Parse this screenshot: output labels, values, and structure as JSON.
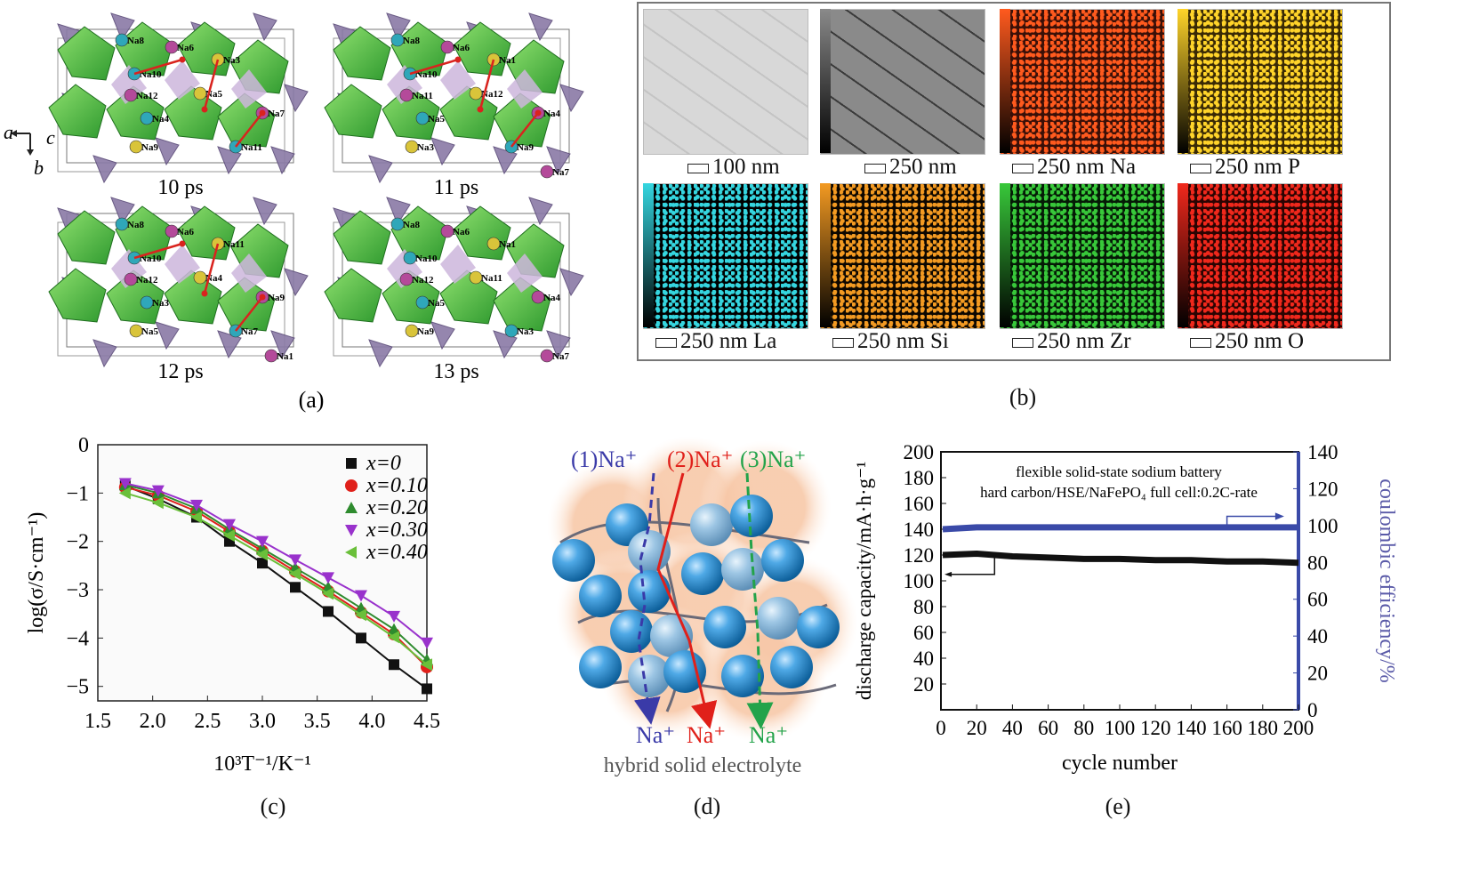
{
  "panels": {
    "a": {
      "label": "(a)",
      "axes": {
        "a": "a",
        "b": "b",
        "c": "c"
      },
      "frames": [
        {
          "time": "10 ps",
          "sites": [
            "Na8",
            "Na6",
            "Na3",
            "Na10",
            "Na12",
            "Na5",
            "Na4",
            "Na7",
            "Na9",
            "Na11"
          ]
        },
        {
          "time": "11 ps",
          "sites": [
            "Na8",
            "Na6",
            "Na1",
            "Na10",
            "Na11",
            "Na12",
            "Na5",
            "Na4",
            "Na3",
            "Na9",
            "Na7"
          ]
        },
        {
          "time": "12 ps",
          "sites": [
            "Na8",
            "Na6",
            "Na11",
            "Na10",
            "Na12",
            "Na4",
            "Na3",
            "Na9",
            "Na5",
            "Na7",
            "Na1"
          ]
        },
        {
          "time": "13 ps",
          "sites": [
            "Na8",
            "Na6",
            "Na1",
            "Na10",
            "Na12",
            "Na11",
            "Na5",
            "Na4",
            "Na9",
            "Na3",
            "Na7"
          ]
        }
      ]
    },
    "b": {
      "label": "(b)",
      "maps": [
        {
          "scale": "100 nm",
          "colors": [
            "#d8d8d8",
            "#c4c4c4"
          ]
        },
        {
          "scale": "250 nm",
          "colors": [
            "#8a8a8a",
            "#3b3b3b"
          ]
        },
        {
          "scale": "250 nm Na",
          "colors": [
            "#ff5a1e",
            "#3a1008"
          ]
        },
        {
          "scale": "250 nm P",
          "colors": [
            "#ffd42a",
            "#3a2a05"
          ]
        },
        {
          "scale": "250 nm La",
          "colors": [
            "#35d6e0",
            "#000000"
          ]
        },
        {
          "scale": "250 nm Si",
          "colors": [
            "#f39a22",
            "#0d0700"
          ]
        },
        {
          "scale": "250 nm Zr",
          "colors": [
            "#38c83a",
            "#051a06"
          ]
        },
        {
          "scale": "250 nm O",
          "colors": [
            "#f0281c",
            "#2a0402"
          ]
        }
      ]
    },
    "c": {
      "label": "(c)"
    },
    "d": {
      "label": "(d)",
      "routes": [
        {
          "text": "(1)Na⁺",
          "color": "#3a3aa8"
        },
        {
          "text": "(2)Na⁺",
          "color": "#e0201a"
        },
        {
          "text": "(3)Na⁺",
          "color": "#23a34a"
        }
      ],
      "outlets": [
        {
          "text": "Na⁺",
          "color": "#3a3aa8"
        },
        {
          "text": "Na⁺",
          "color": "#e0201a"
        },
        {
          "text": "Na⁺",
          "color": "#23a34a"
        }
      ],
      "caption": "hybrid solid electrolyte"
    },
    "e": {
      "label": "(e)"
    }
  },
  "chart_data": [
    {
      "type": "line",
      "panel": "c",
      "xlabel": "10³T⁻¹/K⁻¹",
      "ylabel": "log(σ/S·cm⁻¹)",
      "xlim": [
        1.5,
        4.5
      ],
      "ylim": [
        -5.3,
        0
      ],
      "xticks": [
        "1.5",
        "2.0",
        "2.5",
        "3.0",
        "3.5",
        "4.0",
        "4.5"
      ],
      "yticks": [
        "0",
        "−1",
        "−2",
        "−3",
        "−4",
        "−5"
      ],
      "legend_position": "top-right",
      "grid": false,
      "series": [
        {
          "name": "x=0",
          "color": "#111111",
          "marker": "square",
          "x": [
            1.75,
            2.05,
            2.4,
            2.7,
            3.0,
            3.3,
            3.6,
            3.9,
            4.2,
            4.5
          ],
          "y": [
            -0.85,
            -1.12,
            -1.5,
            -2.0,
            -2.45,
            -2.95,
            -3.45,
            -4.0,
            -4.55,
            -5.05
          ]
        },
        {
          "name": "x=0.10",
          "color": "#e0201a",
          "marker": "circle",
          "x": [
            1.75,
            2.05,
            2.4,
            2.7,
            3.0,
            3.3,
            3.6,
            3.9,
            4.2,
            4.5
          ],
          "y": [
            -0.88,
            -1.05,
            -1.38,
            -1.8,
            -2.2,
            -2.62,
            -3.03,
            -3.47,
            -3.92,
            -4.6
          ]
        },
        {
          "name": "x=0.20",
          "color": "#2e8b2e",
          "marker": "triangle-up",
          "x": [
            1.75,
            2.05,
            2.4,
            2.7,
            3.0,
            3.3,
            3.6,
            3.9,
            4.2,
            4.5
          ],
          "y": [
            -0.83,
            -1.0,
            -1.32,
            -1.75,
            -2.15,
            -2.55,
            -2.95,
            -3.38,
            -3.82,
            -4.45
          ]
        },
        {
          "name": "x=0.30",
          "color": "#9932cc",
          "marker": "triangle-down",
          "x": [
            1.75,
            2.05,
            2.4,
            2.7,
            3.0,
            3.3,
            3.6,
            3.9,
            4.2,
            4.5
          ],
          "y": [
            -0.8,
            -0.95,
            -1.25,
            -1.65,
            -2.0,
            -2.38,
            -2.75,
            -3.12,
            -3.55,
            -4.1
          ]
        },
        {
          "name": "x=0.40",
          "color": "#6abf3a",
          "marker": "triangle-left",
          "x": [
            1.75,
            2.05,
            2.4,
            2.7,
            3.0,
            3.3,
            3.6,
            3.9,
            4.2,
            4.5
          ],
          "y": [
            -1.0,
            -1.2,
            -1.5,
            -1.88,
            -2.27,
            -2.67,
            -3.08,
            -3.52,
            -3.98,
            -4.55
          ]
        }
      ]
    },
    {
      "type": "line",
      "panel": "e",
      "annotation_lines": [
        "flexible solid-state sodium battery",
        "hard carbon/HSE/NaFePO₄ full cell:0.2C-rate"
      ],
      "xlabel": "cycle number",
      "ylabel": "discharge capacity/mA·h·g⁻¹",
      "ylabel_right": "coulombic efficiency/%",
      "xlim": [
        0,
        200
      ],
      "ylim": [
        0,
        200
      ],
      "ylim_right": [
        0,
        140
      ],
      "xticks": [
        "0",
        "20",
        "40",
        "60",
        "80",
        "100",
        "120",
        "140",
        "160",
        "180",
        "200"
      ],
      "yticks": [
        "20",
        "40",
        "60",
        "80",
        "100",
        "120",
        "140",
        "160",
        "180",
        "200"
      ],
      "yticks_right": [
        "0",
        "20",
        "40",
        "60",
        "80",
        "100",
        "120",
        "140"
      ],
      "grid": false,
      "series": [
        {
          "name": "discharge capacity",
          "axis": "left",
          "color": "#111111",
          "x": [
            1,
            20,
            40,
            60,
            80,
            100,
            120,
            140,
            160,
            180,
            200
          ],
          "y": [
            120,
            121,
            119,
            118,
            117,
            117,
            116,
            116,
            115,
            115,
            114
          ]
        },
        {
          "name": "coulombic efficiency",
          "axis": "right",
          "color": "#3a4aa8",
          "x": [
            1,
            20,
            40,
            60,
            80,
            100,
            120,
            140,
            160,
            180,
            200
          ],
          "y": [
            98,
            99,
            99,
            99,
            99,
            99,
            99,
            99,
            99,
            99,
            99
          ]
        }
      ]
    }
  ]
}
